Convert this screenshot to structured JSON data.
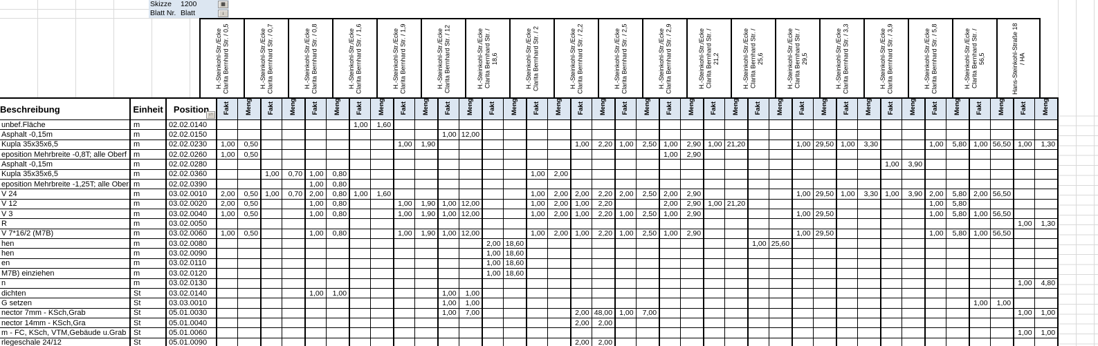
{
  "fields": {
    "skizze_label": "Skizze",
    "skizze_value": "1200",
    "blatt_label": "Blatt Nr.",
    "blatt_value": "Blatt"
  },
  "table": {
    "headers": {
      "beschreibung": "Beschreibung",
      "einheit": "Einheit",
      "position": "Position",
      "fakt": "Fakt",
      "meng": "Meng"
    },
    "groups": [
      "H.-Steinkohl-Str./Ecke Clarita Bernhard Str. / 0,5",
      "H.-Steinkohl-Str./Ecke Clarita Bernhard Str. / 0,7",
      "H.-Steinkohl-Str./Ecke Clarita Bernhard Str. / 0,8",
      "H.-Steinkohl-Str./Ecke Clarita Bernhard Str. / 1,6",
      "H.-Steinkohl-Str./Ecke Clarita Bernhard Str. / 1,9",
      "H.-Steinkohl-Str./Ecke Clarita Bernhard Str. / 12",
      "H.-Steinkohl-Str./Ecke Clarita Bernhard Str. / 18,6",
      "H.-Steinkohl-Str./Ecke Clarita Bernhard Str. / 2",
      "H.-Steinkohl-Str./Ecke Clarita Bernhard Str. / 2,2",
      "H.-Steinkohl-Str./Ecke Clarita Bernhard Str. / 2,5",
      "H.-Steinkohl-Str./Ecke Clarita Bernhard Str. / 2,9",
      "H.-Steinkohl-Str./Ecke Clarita Bernhard Str. / 21,2",
      "H.-Steinkohl-Str./Ecke Clarita Bernhard Str. / 25,6",
      "H.-Steinkohl-Str./Ecke Clarita Bernhard Str. / 29,5",
      "H.-Steinkohl-Str./Ecke Clarita Bernhard Str. / 3,3",
      "H.-Steinkohl-Str./Ecke Clarita Bernhard Str. / 3,9",
      "H.-Steinkohl-Str./Ecke Clarita Bernhard Str. / 5,8",
      "H.-Steinkohl-Str./Ecke Clarita Bernhard Str. / 56,5",
      "Hans-Steinkohl-Straße 18 / HA"
    ],
    "rows": [
      {
        "beschreibung": "unbef.Fläche",
        "einheit": "m",
        "position": "02.02.0140",
        "cells": {
          "4": [
            "1,00",
            "1,60"
          ]
        }
      },
      {
        "beschreibung": "Asphalt -0,15m",
        "einheit": "m",
        "position": "02.02.0150",
        "cells": {
          "6": [
            "1,00",
            "12,00"
          ]
        }
      },
      {
        "beschreibung": "Kupla 35x35x6,5",
        "einheit": "m",
        "position": "02.02.0230",
        "cells": {
          "1": [
            "1,00",
            "0,50"
          ],
          "5": [
            "1,00",
            "1,90"
          ],
          "9": [
            "1,00",
            "2,20"
          ],
          "10": [
            "1,00",
            "2,50"
          ],
          "11": [
            "1,00",
            "2,90"
          ],
          "12": [
            "1,00",
            "21,20"
          ],
          "14": [
            "1,00",
            "29,50"
          ],
          "15": [
            "1,00",
            "3,30"
          ],
          "17": [
            "1,00",
            "5,80"
          ],
          "18": [
            "1,00",
            "56,50"
          ],
          "19": [
            "1,00",
            "1,30"
          ]
        }
      },
      {
        "beschreibung": "eposition Mehrbreite -0,8T; alle Oberf",
        "einheit": "m",
        "position": "02.02.0260",
        "cells": {
          "1": [
            "1,00",
            "0,50"
          ],
          "11": [
            "1,00",
            "2,90"
          ]
        }
      },
      {
        "beschreibung": "Asphalt -0,15m",
        "einheit": "m",
        "position": "02.02.0280",
        "cells": {
          "16": [
            "1,00",
            "3,90"
          ]
        }
      },
      {
        "beschreibung": "Kupla 35x35x6,5",
        "einheit": "m",
        "position": "02.02.0360",
        "cells": {
          "2": [
            "1,00",
            "0,70"
          ],
          "3": [
            "1,00",
            "0,80"
          ],
          "8": [
            "1,00",
            "2,00"
          ]
        }
      },
      {
        "beschreibung": "eposition Mehrbreite -1,25T; alle Ober",
        "einheit": "m",
        "position": "02.02.0390",
        "cells": {
          "3": [
            "1,00",
            "0,80"
          ]
        }
      },
      {
        "beschreibung": "V 24",
        "einheit": "m",
        "position": "03.02.0010",
        "cells": {
          "1": [
            "2,00",
            "0,50"
          ],
          "2": [
            "1,00",
            "0,70"
          ],
          "3": [
            "2,00",
            "0,80"
          ],
          "4": [
            "1,00",
            "1,60"
          ],
          "8": [
            "1,00",
            "2,00"
          ],
          "9": [
            "2,00",
            "2,20"
          ],
          "10": [
            "2,00",
            "2,50"
          ],
          "11": [
            "2,00",
            "2,90"
          ],
          "14": [
            "1,00",
            "29,50"
          ],
          "15": [
            "1,00",
            "3,30"
          ],
          "16": [
            "1,00",
            "3,90"
          ],
          "17": [
            "2,00",
            "5,80"
          ],
          "18": [
            "2,00",
            "56,50"
          ]
        }
      },
      {
        "beschreibung": "V 12",
        "einheit": "m",
        "position": "03.02.0020",
        "cells": {
          "1": [
            "2,00",
            "0,50"
          ],
          "3": [
            "1,00",
            "0,80"
          ],
          "5": [
            "1,00",
            "1,90"
          ],
          "6": [
            "1,00",
            "12,00"
          ],
          "8": [
            "1,00",
            "2,00"
          ],
          "9": [
            "1,00",
            "2,20"
          ],
          "11": [
            "2,00",
            "2,90"
          ],
          "12": [
            "1,00",
            "21,20"
          ],
          "17": [
            "1,00",
            "5,80"
          ]
        }
      },
      {
        "beschreibung": "V 3",
        "einheit": "m",
        "position": "03.02.0040",
        "cells": {
          "1": [
            "1,00",
            "0,50"
          ],
          "3": [
            "1,00",
            "0,80"
          ],
          "5": [
            "1,00",
            "1,90"
          ],
          "6": [
            "1,00",
            "12,00"
          ],
          "8": [
            "1,00",
            "2,00"
          ],
          "9": [
            "1,00",
            "2,20"
          ],
          "10": [
            "1,00",
            "2,50"
          ],
          "11": [
            "1,00",
            "2,90"
          ],
          "14": [
            "1,00",
            "29,50"
          ],
          "17": [
            "1,00",
            "5,80"
          ],
          "18": [
            "1,00",
            "56,50"
          ]
        }
      },
      {
        "beschreibung": "R",
        "einheit": "m",
        "position": "03.02.0050",
        "cells": {
          "19": [
            "1,00",
            "1,30"
          ]
        }
      },
      {
        "beschreibung": "V 7*16/2 (M7B)",
        "einheit": "m",
        "position": "03.02.0060",
        "cells": {
          "1": [
            "1,00",
            "0,50"
          ],
          "3": [
            "1,00",
            "0,80"
          ],
          "5": [
            "1,00",
            "1,90"
          ],
          "6": [
            "1,00",
            "12,00"
          ],
          "8": [
            "1,00",
            "2,00"
          ],
          "9": [
            "1,00",
            "2,20"
          ],
          "10": [
            "1,00",
            "2,50"
          ],
          "11": [
            "1,00",
            "2,90"
          ],
          "14": [
            "1,00",
            "29,50"
          ],
          "17": [
            "1,00",
            "5,80"
          ],
          "18": [
            "1,00",
            "56,50"
          ]
        }
      },
      {
        "beschreibung": "hen",
        "einheit": "m",
        "position": "03.02.0080",
        "cells": {
          "7": [
            "2,00",
            "18,60"
          ],
          "13": [
            "1,00",
            "25,60"
          ]
        }
      },
      {
        "beschreibung": "hen",
        "einheit": "m",
        "position": "03.02.0090",
        "cells": {
          "7": [
            "1,00",
            "18,60"
          ]
        }
      },
      {
        "beschreibung": "en",
        "einheit": "m",
        "position": "03.02.0110",
        "cells": {
          "7": [
            "1,00",
            "18,60"
          ]
        }
      },
      {
        "beschreibung": "M7B) einziehen",
        "einheit": "m",
        "position": "03.02.0120",
        "cells": {
          "7": [
            "1,00",
            "18,60"
          ]
        }
      },
      {
        "beschreibung": "n",
        "einheit": "m",
        "position": "03.02.0130",
        "cells": {
          "19": [
            "1,00",
            "4,80"
          ]
        }
      },
      {
        "beschreibung": "dichten",
        "einheit": "St",
        "position": "03.02.0140",
        "cells": {
          "3": [
            "1,00",
            "1,00"
          ],
          "6": [
            "1,00",
            "1,00"
          ]
        }
      },
      {
        "beschreibung": "G setzen",
        "einheit": "St",
        "position": "03.03.0010",
        "cells": {
          "6": [
            "1,00",
            "1,00"
          ],
          "18": [
            "1,00",
            "1,00"
          ]
        }
      },
      {
        "beschreibung": "nector 7mm - KSch,Grab",
        "einheit": "St",
        "position": "05.01.0030",
        "cells": {
          "6": [
            "1,00",
            "7,00"
          ],
          "9": [
            "2,00",
            "48,00"
          ],
          "10": [
            "1,00",
            "7,00"
          ],
          "19": [
            "1,00",
            "1,00"
          ]
        }
      },
      {
        "beschreibung": "nector 14mm - KSch,Gra",
        "einheit": "St",
        "position": "05.01.0040",
        "cells": {
          "9": [
            "2,00",
            "2,00"
          ]
        }
      },
      {
        "beschreibung": "m - FC, KSch, VTM,Gebäude u.Grab",
        "einheit": "St",
        "position": "05.01.0060",
        "cells": {
          "19": [
            "1,00",
            "1,00"
          ]
        }
      },
      {
        "beschreibung": "rlegeschale 24/12",
        "einheit": "St",
        "position": "05.01.0090",
        "cells": {
          "9": [
            "2,00",
            "2,00"
          ]
        }
      }
    ]
  },
  "icons": {
    "skizze_button": "▦",
    "blatt_button": "↓",
    "position_filter": "↓↑"
  },
  "colors": {
    "header_fill": "#dce6f1",
    "grid_line": "#d9d9d9",
    "border": "#000000",
    "button_face": "#d4d0c8"
  }
}
